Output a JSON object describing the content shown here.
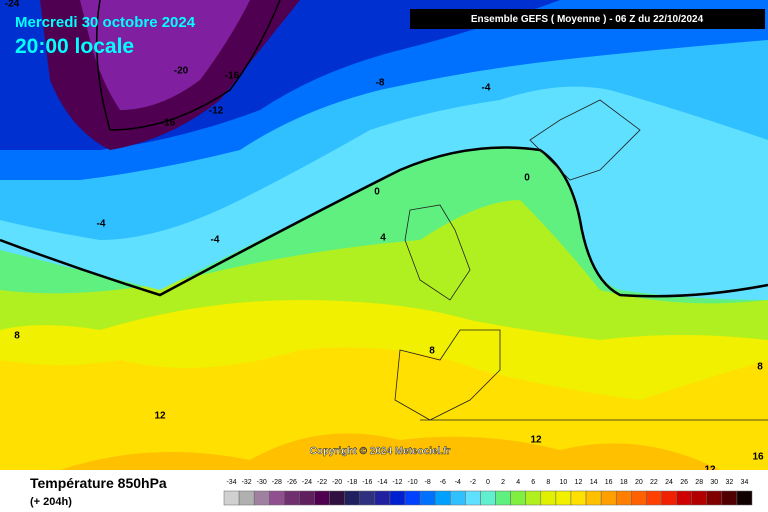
{
  "header": {
    "date": "Mercredi 30 octobre 2024",
    "time": "20:00 locale",
    "model": "Ensemble GEFS  ( Moyenne )  -  06 Z du 22/10/2024"
  },
  "copyright": "Copyright © 2024 Meteociel.fr",
  "footer": {
    "title": "Température 850hPa",
    "lead": "(+ 204h)"
  },
  "contour_labels": [
    -24,
    -20,
    -16,
    -12,
    -16,
    -8,
    -4,
    0,
    0,
    -4,
    -4,
    4,
    8,
    8,
    8,
    12,
    12,
    12,
    16
  ],
  "scale": {
    "labels": [
      -34,
      -32,
      -30,
      -28,
      -26,
      -24,
      -22,
      -20,
      -18,
      -16,
      -14,
      -12,
      -10,
      -8,
      -6,
      -4,
      -2,
      0,
      2,
      4,
      6,
      8,
      10,
      12,
      14,
      16,
      18,
      20,
      22,
      24,
      26,
      28,
      30,
      32,
      34
    ],
    "colors": [
      "#d0d0d0",
      "#b0b0b0",
      "#a080a0",
      "#905090",
      "#703070",
      "#602060",
      "#500050",
      "#301040",
      "#202060",
      "#303080",
      "#2020a0",
      "#0020d0",
      "#0040ff",
      "#0070ff",
      "#00a0ff",
      "#30c0ff",
      "#60e0ff",
      "#60f0d0",
      "#60f080",
      "#80f040",
      "#b0f020",
      "#e0f000",
      "#f0f000",
      "#ffe000",
      "#ffc000",
      "#ffa000",
      "#ff8000",
      "#ff6000",
      "#ff4000",
      "#f02000",
      "#d00000",
      "#b00000",
      "#800000",
      "#500000",
      "#100000"
    ]
  }
}
